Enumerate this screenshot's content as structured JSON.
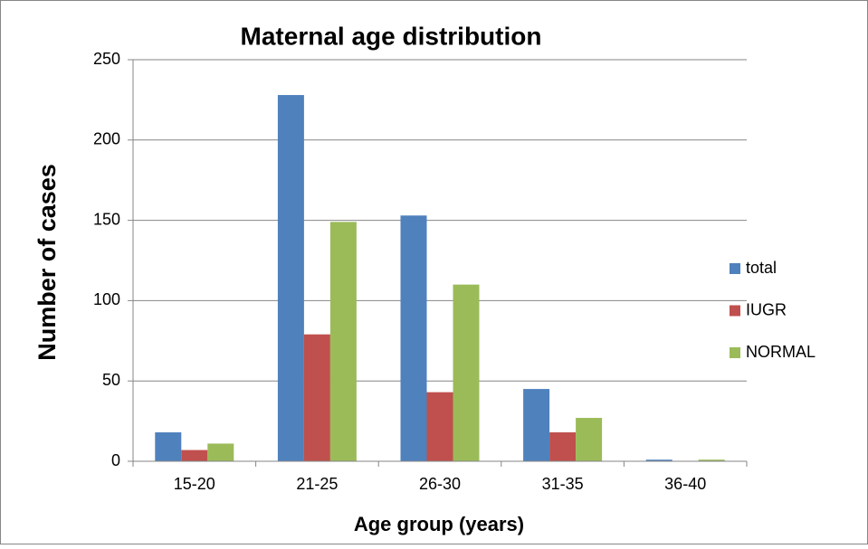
{
  "chart_data": {
    "type": "bar",
    "title": "Maternal age distribution",
    "x_label": "Age group (years)",
    "y_label": "Number of cases",
    "categories": [
      "15-20",
      "21-25",
      "26-30",
      "31-35",
      "36-40"
    ],
    "series": [
      {
        "name": "total",
        "color": "#4f81bd",
        "values": [
          18,
          228,
          153,
          45,
          1
        ]
      },
      {
        "name": "IUGR",
        "color": "#c0504d",
        "values": [
          7,
          79,
          43,
          18,
          0
        ]
      },
      {
        "name": "NORMAL",
        "color": "#9bbb59",
        "values": [
          11,
          149,
          110,
          27,
          1
        ]
      }
    ],
    "ylim": [
      0,
      250
    ],
    "yticks": [
      0,
      50,
      100,
      150,
      200,
      250
    ],
    "grid": true,
    "legend": "right"
  }
}
